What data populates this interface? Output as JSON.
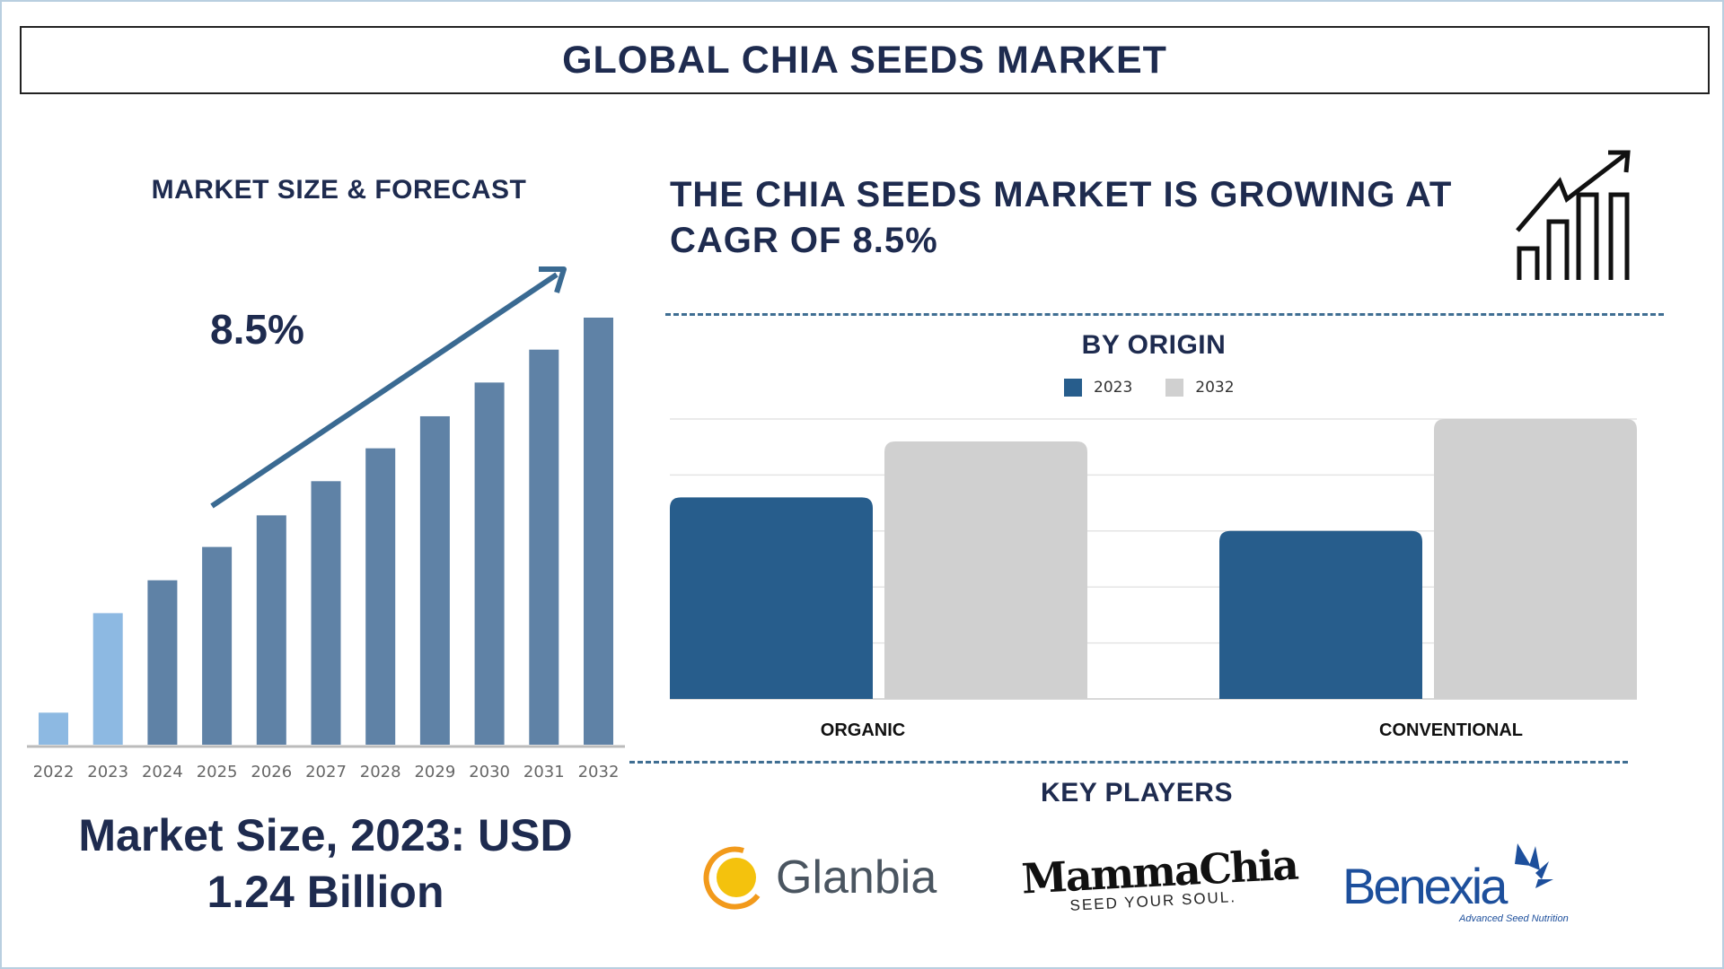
{
  "title": "GLOBAL CHIA SEEDS MARKET",
  "left_panel": {
    "heading": "MARKET SIZE & FORECAST",
    "cagr_label": "8.5%",
    "market_size_line1": "Market Size, 2023: USD",
    "market_size_line2": "1.24 Billion"
  },
  "right_panel": {
    "headline_line1": "THE CHIA SEEDS MARKET IS GROWING AT",
    "headline_line2": "CAGR OF 8.5%",
    "growth_icon": "bar-chart-growth-arrow-icon",
    "origin_heading": "BY ORIGIN",
    "key_players_heading": "KEY PLAYERS",
    "key_players": [
      {
        "name": "Glanbia"
      },
      {
        "name": "MammaChia",
        "tagline": "SEED YOUR SOUL."
      },
      {
        "name": "Benexia",
        "tagline": "Advanced Seed Nutrition"
      }
    ]
  },
  "chart_data": [
    {
      "type": "bar",
      "categories": [
        "2022",
        "2023",
        "2024",
        "2025",
        "2026",
        "2027",
        "2028",
        "2029",
        "2030",
        "2031",
        "2032"
      ],
      "values": [
        7.5,
        30.8,
        38.5,
        46.3,
        53.7,
        61.7,
        69.4,
        76.9,
        84.8,
        92.5,
        100
      ],
      "highlighted": [
        "2022",
        "2023"
      ],
      "colors": {
        "highlight": "#8db9e2",
        "default": "#5f82a6",
        "arrow": "#3a6a92"
      },
      "title": "",
      "xlabel": "",
      "ylabel": "",
      "grid": false
    },
    {
      "type": "bar",
      "categories": [
        "ORGANIC",
        "CONVENTIONAL"
      ],
      "series": [
        {
          "name": "2023",
          "values": [
            3.6,
            3.0
          ],
          "color": "#275d8c"
        },
        {
          "name": "2032",
          "values": [
            4.6,
            5.0
          ],
          "color": "#d0d0d0"
        }
      ],
      "ylim": [
        0,
        5
      ],
      "grid": true,
      "legend": "top-center",
      "title": "BY ORIGIN"
    }
  ]
}
